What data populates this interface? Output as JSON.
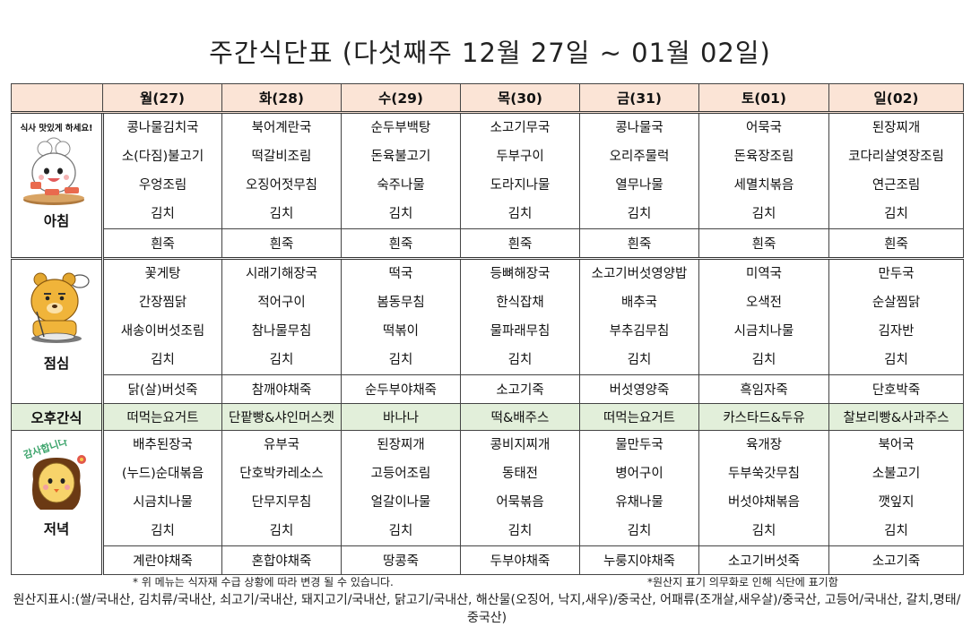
{
  "title": "주간식단표 (다섯째주 12월 27일 ~ 01월 02일)",
  "days": [
    "월(27)",
    "화(28)",
    "수(29)",
    "목(30)",
    "금(31)",
    "토(01)",
    "일(02)"
  ],
  "breakfast": {
    "label": "아침",
    "speech": "식사 맛있게 하세요!",
    "items": [
      [
        "콩나물김치국",
        "소(다짐)불고기",
        "우엉조림",
        "김치"
      ],
      [
        "북어계란국",
        "떡갈비조림",
        "오징어젓무침",
        "김치"
      ],
      [
        "순두부백탕",
        "돈육불고기",
        "숙주나물",
        "김치"
      ],
      [
        "소고기무국",
        "두부구이",
        "도라지나물",
        "김치"
      ],
      [
        "콩나물국",
        "오리주물럭",
        "열무나물",
        "김치"
      ],
      [
        "어묵국",
        "돈육장조림",
        "세멸치볶음",
        "김치"
      ],
      [
        "된장찌개",
        "코다리살엿장조림",
        "연근조림",
        "김치"
      ]
    ],
    "porridge": [
      "흰죽",
      "흰죽",
      "흰죽",
      "흰죽",
      "흰죽",
      "흰죽",
      "흰죽"
    ]
  },
  "lunch": {
    "label": "점심",
    "items": [
      [
        "꽃게탕",
        "간장찜닭",
        "새송이버섯조림",
        "김치"
      ],
      [
        "시래기해장국",
        "적어구이",
        "참나물무침",
        "김치"
      ],
      [
        "떡국",
        "봄동무침",
        "떡볶이",
        "김치"
      ],
      [
        "등뼈해장국",
        "한식잡채",
        "물파래무침",
        "김치"
      ],
      [
        "소고기버섯영양밥",
        "배추국",
        "부추김무침",
        "김치"
      ],
      [
        "미역국",
        "오색전",
        "시금치나물",
        "김치"
      ],
      [
        "만두국",
        "순살찜닭",
        "김자반",
        "김치"
      ]
    ],
    "porridge": [
      "닭(살)버섯죽",
      "참깨야채죽",
      "순두부야채죽",
      "소고기죽",
      "버섯영양죽",
      "흑임자죽",
      "단호박죽"
    ]
  },
  "snack": {
    "label": "오후간식",
    "items": [
      "떠먹는요거트",
      "단팥빵&샤인머스켓",
      "바나나",
      "떡&배주스",
      "떠먹는요거트",
      "카스타드&두유",
      "찰보리빵&사과주스"
    ]
  },
  "dinner": {
    "label": "저녁",
    "speech": "감사합니다",
    "items": [
      [
        "배추된장국",
        "(누드)순대볶음",
        "시금치나물",
        "김치"
      ],
      [
        "유부국",
        "단호박카레소스",
        "단무지무침",
        "김치"
      ],
      [
        "된장찌개",
        "고등어조림",
        "얼갈이나물",
        "김치"
      ],
      [
        "콩비지찌개",
        "동태전",
        "어묵볶음",
        "김치"
      ],
      [
        "물만두국",
        "병어구이",
        "유채나물",
        "김치"
      ],
      [
        "육개장",
        "두부쑥갓무침",
        "버섯야채볶음",
        "김치"
      ],
      [
        "북어국",
        "소불고기",
        "깻잎지",
        "김치"
      ]
    ],
    "porridge": [
      "계란야채죽",
      "혼합야채죽",
      "땅콩죽",
      "두부야채죽",
      "누룽지야채죽",
      "소고기버섯죽",
      "소고기죽"
    ]
  },
  "notes": {
    "left": "* 위 메뉴는 식자재 수급 상황에 따라 변경 될 수 있습니다.",
    "right": "*원산지 표기 의무화로 인해 식단에 표기함",
    "origin": "원산지표시:(쌀/국내산, 김치류/국내산, 쇠고기/국내산, 돼지고기/국내산, 닭고기/국내산, 해산물(오징어, 낙지,새우)/중국산, 어패류(조개살,새우살)/중국산, 고등어/국내산, 갈치,명태/중국산)"
  },
  "icons": {
    "breakfast": "chef-character-icon",
    "lunch": "bear-eating-icon",
    "dinner": "girl-character-icon"
  },
  "colors": {
    "header_bg": "#fbe4d6",
    "snack_bg": "#e2efda"
  }
}
